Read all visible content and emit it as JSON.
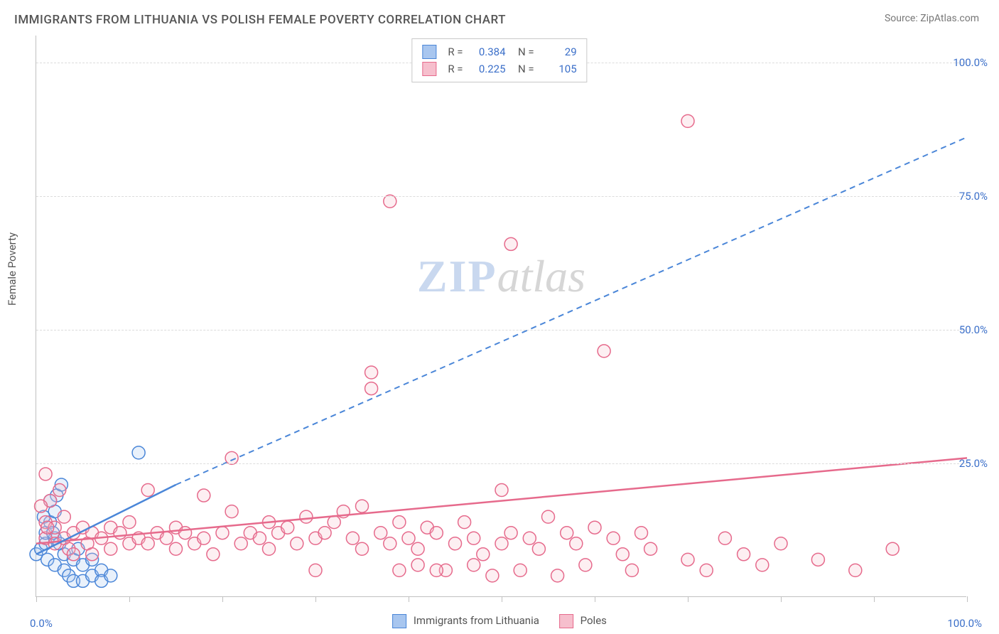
{
  "title": "IMMIGRANTS FROM LITHUANIA VS POLISH FEMALE POVERTY CORRELATION CHART",
  "source": "Source: ZipAtlas.com",
  "ylabel": "Female Poverty",
  "watermark_zip": "ZIP",
  "watermark_atlas": "atlas",
  "chart": {
    "type": "scatter",
    "background_color": "#ffffff",
    "grid_color": "#dcdcdc",
    "axis_color": "#c0c0c0",
    "tick_label_color": "#3b6fc9",
    "xlim": [
      0,
      100
    ],
    "ylim": [
      0,
      105
    ],
    "x_ticks": [
      0,
      10,
      20,
      30,
      40,
      50,
      60,
      70,
      80,
      90,
      100
    ],
    "y_ticks": [
      25,
      50,
      75,
      100
    ],
    "y_tick_labels": [
      "25.0%",
      "50.0%",
      "75.0%",
      "100.0%"
    ],
    "x_origin_label": "0.0%",
    "x_max_label": "100.0%",
    "marker_radius": 9,
    "marker_stroke_width": 1.5,
    "marker_fill_opacity": 0.25,
    "series": [
      {
        "name": "Immigrants from Lithuania",
        "color_stroke": "#4a86d8",
        "color_fill": "#a8c6ef",
        "R": "0.384",
        "N": "29",
        "trend": {
          "x1": 0,
          "y1": 8,
          "x2": 15,
          "y2": 21,
          "solid_until_x": 15,
          "dash_to_x": 100,
          "dash_to_y": 86,
          "width": 2.5,
          "dash": "8 6"
        },
        "points": [
          [
            0,
            8
          ],
          [
            0.5,
            9
          ],
          [
            1,
            10
          ],
          [
            1,
            12
          ],
          [
            1.2,
            7
          ],
          [
            1.5,
            14
          ],
          [
            2,
            11
          ],
          [
            2,
            6
          ],
          [
            2.2,
            19
          ],
          [
            2.5,
            10
          ],
          [
            2.7,
            21
          ],
          [
            3,
            5
          ],
          [
            3,
            8
          ],
          [
            3.5,
            4
          ],
          [
            4,
            7
          ],
          [
            4,
            3
          ],
          [
            4.5,
            9
          ],
          [
            5,
            6
          ],
          [
            5,
            3
          ],
          [
            6,
            4
          ],
          [
            6,
            7
          ],
          [
            7,
            5
          ],
          [
            7,
            3
          ],
          [
            8,
            4
          ],
          [
            2,
            16
          ],
          [
            1.5,
            18
          ],
          [
            0.8,
            15
          ],
          [
            1.8,
            12
          ],
          [
            11,
            27
          ]
        ]
      },
      {
        "name": "Poles",
        "color_stroke": "#e66a8c",
        "color_fill": "#f6bfcd",
        "R": "0.225",
        "N": "105",
        "trend": {
          "x1": 0,
          "y1": 10,
          "x2": 100,
          "y2": 26,
          "width": 2.5
        },
        "points": [
          [
            1,
            11
          ],
          [
            1,
            14
          ],
          [
            1.5,
            18
          ],
          [
            2,
            10
          ],
          [
            2,
            13
          ],
          [
            2.5,
            20
          ],
          [
            3,
            11
          ],
          [
            3,
            15
          ],
          [
            3.5,
            9
          ],
          [
            4,
            12
          ],
          [
            4,
            8
          ],
          [
            5,
            13
          ],
          [
            5.5,
            10
          ],
          [
            6,
            12
          ],
          [
            6,
            8
          ],
          [
            7,
            11
          ],
          [
            8,
            13
          ],
          [
            8,
            9
          ],
          [
            9,
            12
          ],
          [
            10,
            10
          ],
          [
            10,
            14
          ],
          [
            11,
            11
          ],
          [
            12,
            20
          ],
          [
            12,
            10
          ],
          [
            13,
            12
          ],
          [
            14,
            11
          ],
          [
            15,
            9
          ],
          [
            15,
            13
          ],
          [
            16,
            12
          ],
          [
            17,
            10
          ],
          [
            18,
            19
          ],
          [
            18,
            11
          ],
          [
            19,
            8
          ],
          [
            20,
            12
          ],
          [
            21,
            16
          ],
          [
            21,
            26
          ],
          [
            22,
            10
          ],
          [
            23,
            12
          ],
          [
            24,
            11
          ],
          [
            25,
            14
          ],
          [
            25,
            9
          ],
          [
            26,
            12
          ],
          [
            27,
            13
          ],
          [
            28,
            10
          ],
          [
            29,
            15
          ],
          [
            30,
            11
          ],
          [
            30,
            5
          ],
          [
            31,
            12
          ],
          [
            32,
            14
          ],
          [
            33,
            16
          ],
          [
            34,
            11
          ],
          [
            35,
            9
          ],
          [
            35,
            17
          ],
          [
            36,
            42
          ],
          [
            36,
            39
          ],
          [
            37,
            12
          ],
          [
            38,
            74
          ],
          [
            38,
            10
          ],
          [
            39,
            14
          ],
          [
            40,
            11
          ],
          [
            41,
            9
          ],
          [
            41,
            6
          ],
          [
            42,
            13
          ],
          [
            43,
            12
          ],
          [
            44,
            5
          ],
          [
            45,
            10
          ],
          [
            46,
            14
          ],
          [
            47,
            11
          ],
          [
            48,
            8
          ],
          [
            49,
            4
          ],
          [
            50,
            20
          ],
          [
            50,
            10
          ],
          [
            51,
            66
          ],
          [
            51,
            12
          ],
          [
            52,
            5
          ],
          [
            53,
            11
          ],
          [
            54,
            9
          ],
          [
            55,
            15
          ],
          [
            56,
            4
          ],
          [
            57,
            12
          ],
          [
            58,
            10
          ],
          [
            59,
            6
          ],
          [
            60,
            13
          ],
          [
            61,
            46
          ],
          [
            62,
            11
          ],
          [
            63,
            8
          ],
          [
            64,
            5
          ],
          [
            65,
            12
          ],
          [
            66,
            9
          ],
          [
            70,
            89
          ],
          [
            70,
            7
          ],
          [
            72,
            5
          ],
          [
            74,
            11
          ],
          [
            76,
            8
          ],
          [
            78,
            6
          ],
          [
            80,
            10
          ],
          [
            84,
            7
          ],
          [
            88,
            5
          ],
          [
            92,
            9
          ],
          [
            1,
            23
          ],
          [
            0.5,
            17
          ],
          [
            1.2,
            13
          ],
          [
            39,
            5
          ],
          [
            43,
            5
          ],
          [
            47,
            6
          ]
        ]
      }
    ]
  },
  "bottom_legend": {
    "items": [
      {
        "label": "Immigrants from Lithuania",
        "fill": "#a8c6ef",
        "stroke": "#4a86d8"
      },
      {
        "label": "Poles",
        "fill": "#f6bfcd",
        "stroke": "#e66a8c"
      }
    ]
  }
}
